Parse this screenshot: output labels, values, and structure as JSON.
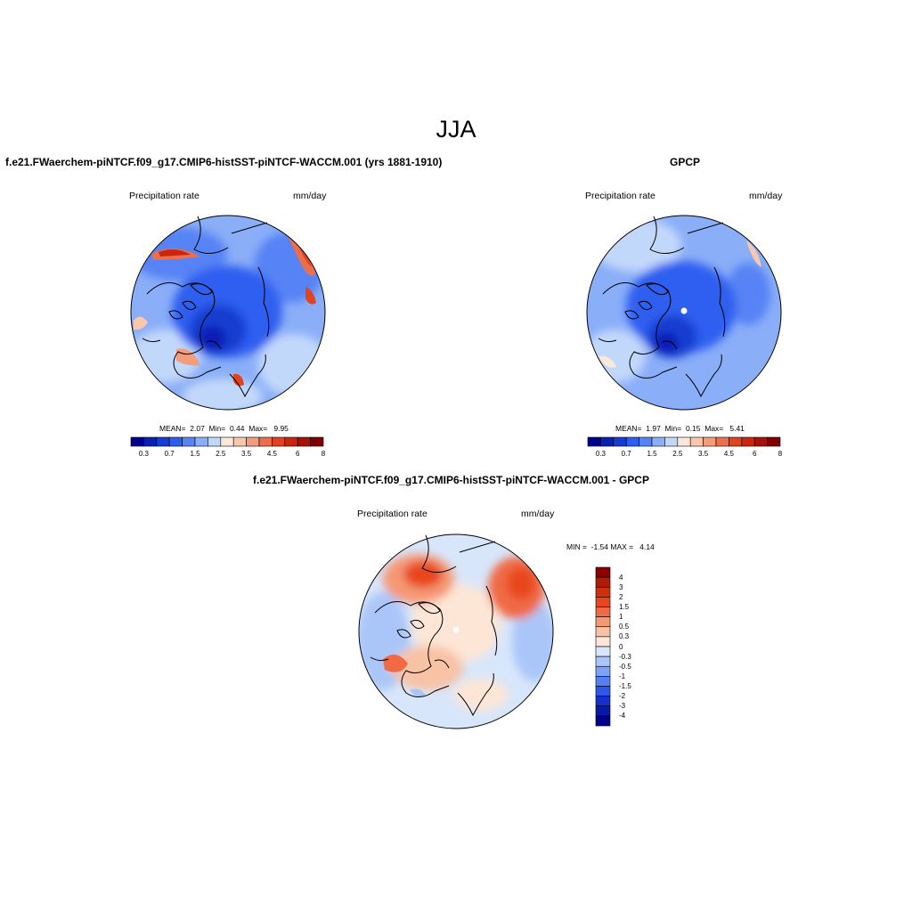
{
  "title": "JJA",
  "panels": {
    "model": {
      "title": "f.e21.FWaerchem-piNTCF.f09_g17.CMIP6-histSST-piNTCF-WACCM.001 (yrs 1881-1910)",
      "left_label": "Precipitation rate",
      "right_label": "mm/day",
      "stats": {
        "mean_label": "MEAN=",
        "mean": "2.07",
        "min_label": "Min=",
        "min": "0.44",
        "max_label": "Max=",
        "max": "9.95"
      }
    },
    "obs": {
      "title": "GPCP",
      "left_label": "Precipitation rate",
      "right_label": "mm/day",
      "stats": {
        "mean_label": "MEAN=",
        "mean": "1.97",
        "min_label": "Min=",
        "min": "0.15",
        "max_label": "Max=",
        "max": "5.41"
      }
    },
    "diff": {
      "title": "f.e21.FWaerchem-piNTCF.f09_g17.CMIP6-histSST-piNTCF-WACCM.001 - GPCP",
      "left_label": "Precipitation rate",
      "right_label": "mm/day",
      "stats": {
        "min_label": "MIN =",
        "min": "-1.54",
        "max_label": "MAX =",
        "max": "4.14"
      }
    }
  },
  "abs_colorbar": {
    "tick_labels": [
      "0.3",
      "0.7",
      "1.5",
      "2.5",
      "3.5",
      "4.5",
      "6",
      "8"
    ],
    "colors": [
      "#00008e",
      "#0a1fb4",
      "#163cd0",
      "#2e5ef0",
      "#5783f5",
      "#8aaef8",
      "#c2d8fb",
      "#fbe8d8",
      "#f8c7ad",
      "#f39d7c",
      "#ec6f4d",
      "#e0431f",
      "#c92610",
      "#a71208",
      "#800000"
    ]
  },
  "diff_colorbar": {
    "tick_labels": [
      "4",
      "3",
      "2",
      "1.5",
      "1",
      "0.5",
      "0.3",
      "0",
      "-0.3",
      "-0.5",
      "-1",
      "-1.5",
      "-2",
      "-3",
      "-4"
    ],
    "colors": [
      "#8b0000",
      "#b01a08",
      "#cf300c",
      "#e8461c",
      "#f06a45",
      "#f59875",
      "#f8c2a5",
      "#fde6d6",
      "#d8e6fb",
      "#aac6f8",
      "#7ea2f5",
      "#557ff2",
      "#2e56ea",
      "#1530cc",
      "#0a1aa8",
      "#00008e"
    ]
  }
}
